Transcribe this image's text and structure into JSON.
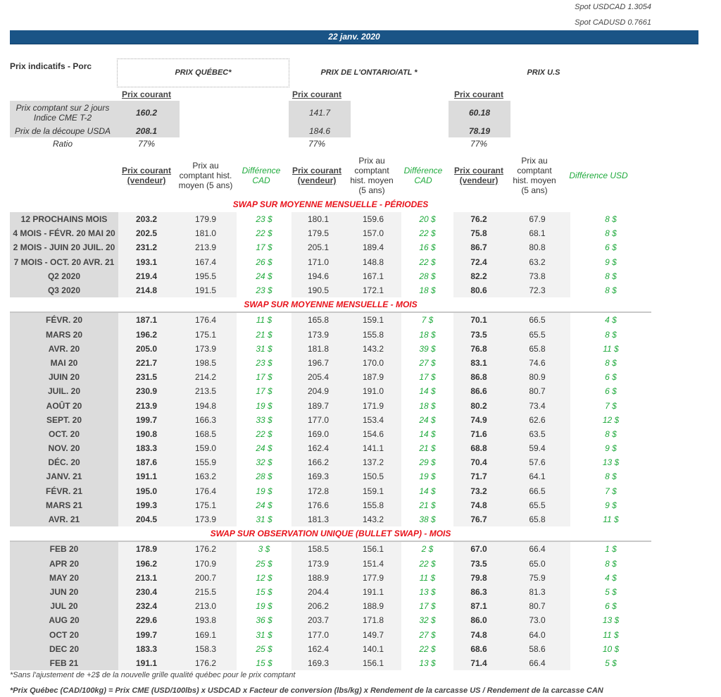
{
  "spot": {
    "usdcad": "Spot USDCAD 1.3054",
    "cadusd": "Spot CADUSD 0.7661"
  },
  "date": "22 janv. 2020",
  "title": "Prix indicatifs - Porc",
  "groups": {
    "quebec": "PRIX QUÉBEC*",
    "ontario": "PRIX DE L'ONTARIO/ATL *",
    "us": "PRIX U.S"
  },
  "current_label": "Prix courant",
  "indicators": {
    "labels": {
      "cme": "Prix comptant sur 2 jours Indice CME T-2",
      "usda": "Prix de la découpe USDA",
      "ratio": "Ratio"
    },
    "quebec": {
      "cme": "160.2",
      "usda": "208.1",
      "ratio": "77%"
    },
    "ontario": {
      "cme": "141.7",
      "usda": "184.6",
      "ratio": "77%"
    },
    "us": {
      "cme": "60.18",
      "usda": "78.19",
      "ratio": "77%"
    }
  },
  "columns": {
    "current": "Prix courant (vendeur)",
    "hist_q": "Prix au comptant hist. moyen (5 ans)",
    "hist": "Prix au comptant hist. moyen (5 ans)",
    "diff_cad": "Différence CAD",
    "diff_usd": "Différence USD"
  },
  "sections": [
    {
      "title": "SWAP SUR MOYENNE MENSUELLE - PÉRIODES",
      "rows": [
        [
          "12 PROCHAINS MOIS",
          "203.2",
          "179.9",
          "23 $",
          "180.1",
          "159.6",
          "20 $",
          "76.2",
          "67.9",
          "8 $"
        ],
        [
          "4 MOIS -  FÉVR. 20 MAI 20",
          "202.5",
          "181.0",
          "22 $",
          "179.5",
          "157.0",
          "22 $",
          "75.8",
          "68.1",
          "8 $"
        ],
        [
          "2 MOIS -  JUIN 20 JUIL. 20",
          "231.2",
          "213.9",
          "17 $",
          "205.1",
          "189.4",
          "16 $",
          "86.7",
          "80.8",
          "6 $"
        ],
        [
          "7 MOIS -  OCT. 20 AVR. 21",
          "193.1",
          "167.4",
          "26 $",
          "171.0",
          "148.8",
          "22 $",
          "72.4",
          "63.2",
          "9 $"
        ],
        [
          "Q2 2020",
          "219.4",
          "195.5",
          "24 $",
          "194.6",
          "167.1",
          "28 $",
          "82.2",
          "73.8",
          "8 $"
        ],
        [
          "Q3 2020",
          "214.8",
          "191.5",
          "23 $",
          "190.5",
          "172.1",
          "18 $",
          "80.6",
          "72.3",
          "8 $"
        ]
      ]
    },
    {
      "title": "SWAP SUR MOYENNE MENSUELLE - MOIS",
      "rows": [
        [
          "FÉVR. 20",
          "187.1",
          "176.4",
          "11 $",
          "165.8",
          "159.1",
          "7 $",
          "70.1",
          "66.5",
          "4 $"
        ],
        [
          "MARS 20",
          "196.2",
          "175.1",
          "21 $",
          "173.9",
          "155.8",
          "18 $",
          "73.5",
          "65.5",
          "8 $"
        ],
        [
          "AVR. 20",
          "205.0",
          "173.9",
          "31 $",
          "181.8",
          "143.2",
          "39 $",
          "76.8",
          "65.8",
          "11 $"
        ],
        [
          "MAI 20",
          "221.7",
          "198.5",
          "23 $",
          "196.7",
          "170.0",
          "27 $",
          "83.1",
          "74.6",
          "8 $"
        ],
        [
          "JUIN 20",
          "231.5",
          "214.2",
          "17 $",
          "205.4",
          "187.9",
          "17 $",
          "86.8",
          "80.9",
          "6 $"
        ],
        [
          "JUIL. 20",
          "230.9",
          "213.5",
          "17 $",
          "204.9",
          "191.0",
          "14 $",
          "86.6",
          "80.7",
          "6 $"
        ],
        [
          "AOÛT 20",
          "213.9",
          "194.8",
          "19 $",
          "189.7",
          "171.9",
          "18 $",
          "80.2",
          "73.4",
          "7 $"
        ],
        [
          "SEPT. 20",
          "199.7",
          "166.3",
          "33 $",
          "177.0",
          "153.4",
          "24 $",
          "74.9",
          "62.6",
          "12 $"
        ],
        [
          "OCT. 20",
          "190.8",
          "168.5",
          "22 $",
          "169.0",
          "154.6",
          "14 $",
          "71.6",
          "63.5",
          "8 $"
        ],
        [
          "NOV. 20",
          "183.3",
          "159.0",
          "24 $",
          "162.4",
          "141.1",
          "21 $",
          "68.8",
          "59.4",
          "9 $"
        ],
        [
          "DÉC. 20",
          "187.6",
          "155.9",
          "32 $",
          "166.2",
          "137.2",
          "29 $",
          "70.4",
          "57.6",
          "13 $"
        ],
        [
          "JANV. 21",
          "191.1",
          "163.2",
          "28 $",
          "169.3",
          "150.5",
          "19 $",
          "71.7",
          "64.1",
          "8 $"
        ],
        [
          "FÉVR. 21",
          "195.0",
          "176.4",
          "19 $",
          "172.8",
          "159.1",
          "14 $",
          "73.2",
          "66.5",
          "7 $"
        ],
        [
          "MARS 21",
          "199.3",
          "175.1",
          "24 $",
          "176.6",
          "155.8",
          "21 $",
          "74.8",
          "65.5",
          "9 $"
        ],
        [
          "AVR. 21",
          "204.5",
          "173.9",
          "31 $",
          "181.3",
          "143.2",
          "38 $",
          "76.7",
          "65.8",
          "11 $"
        ]
      ]
    },
    {
      "title": "SWAP SUR OBSERVATION UNIQUE (BULLET SWAP) - MOIS",
      "rows": [
        [
          "FEB 20",
          "178.9",
          "176.2",
          "3 $",
          "158.5",
          "156.1",
          "2 $",
          "67.0",
          "66.4",
          "1 $"
        ],
        [
          "APR 20",
          "196.2",
          "170.9",
          "25 $",
          "173.9",
          "151.4",
          "22 $",
          "73.5",
          "65.0",
          "8 $"
        ],
        [
          "MAY 20",
          "213.1",
          "200.7",
          "12 $",
          "188.9",
          "177.9",
          "11 $",
          "79.8",
          "75.9",
          "4 $"
        ],
        [
          "JUN 20",
          "230.4",
          "215.5",
          "15 $",
          "204.4",
          "191.1",
          "13 $",
          "86.3",
          "81.3",
          "5 $"
        ],
        [
          "JUL 20",
          "232.4",
          "213.0",
          "19 $",
          "206.2",
          "188.9",
          "17 $",
          "87.1",
          "80.7",
          "6 $"
        ],
        [
          "AUG 20",
          "229.6",
          "193.8",
          "36 $",
          "203.7",
          "171.8",
          "32 $",
          "86.0",
          "73.0",
          "13 $"
        ],
        [
          "OCT 20",
          "199.7",
          "169.1",
          "31 $",
          "177.0",
          "149.7",
          "27 $",
          "74.8",
          "64.0",
          "11 $"
        ],
        [
          "DEC 20",
          "183.3",
          "158.3",
          "25 $",
          "162.4",
          "140.1",
          "22 $",
          "68.6",
          "58.6",
          "10 $"
        ],
        [
          "FEB 21",
          "191.1",
          "176.2",
          "15 $",
          "169.3",
          "156.1",
          "13 $",
          "71.4",
          "66.4",
          "5 $"
        ]
      ]
    }
  ],
  "footnotes": [
    "*Sans l'ajustement de +2$ de la nouvelle grille qualité québec pour le prix comptant",
    "*Prix Québec (CAD/100kg) = Prix CME (USD/100lbs) x USDCAD x Facteur de conversion (lbs/kg) x Rendement de la carcasse US / Rendement de la carcasse CAN"
  ],
  "colors": {
    "banner": "#1a5486",
    "section_title": "#e8131b",
    "difference": "#1faa3c"
  }
}
